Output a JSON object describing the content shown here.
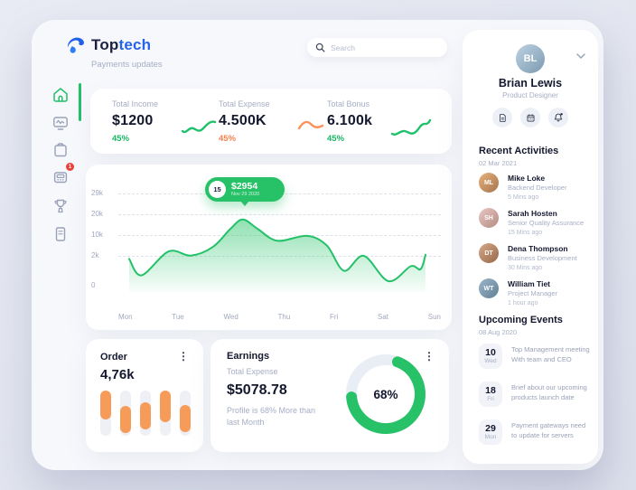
{
  "brand": {
    "name_bold": "Top",
    "name_accent": "tech",
    "subtitle": "Payments updates"
  },
  "search": {
    "placeholder": "Search"
  },
  "sidebar": {
    "items": [
      {
        "icon": "home",
        "active": true
      },
      {
        "icon": "monitor",
        "active": false
      },
      {
        "icon": "clipboard",
        "active": false
      },
      {
        "icon": "card-machine",
        "active": false,
        "badge": "1"
      },
      {
        "icon": "trophy",
        "active": false
      },
      {
        "icon": "notebook",
        "active": false
      }
    ]
  },
  "stats": [
    {
      "label": "Total Income",
      "value": "$1200",
      "change": "45%",
      "trend": "up",
      "color": "#22c06a"
    },
    {
      "label": "Total Expense",
      "value": "4.500K",
      "change": "45%",
      "trend": "hump",
      "color": "#f9804e"
    },
    {
      "label": "Total Bonus",
      "value": "6.100k",
      "change": "45%",
      "trend": "up",
      "color": "#22c06a"
    }
  ],
  "chart_data": [
    {
      "type": "area",
      "title": "",
      "x_ticks": [
        "Mon",
        "Tue",
        "Wed",
        "Thu",
        "Fri",
        "Sat",
        "Sun"
      ],
      "y_ticks": [
        "29k",
        "20k",
        "10k",
        "2k",
        "0"
      ],
      "y_range_k": [
        0,
        29
      ],
      "grid": "dashed-horizontal",
      "line_color": "#24c168",
      "fill": "green-gradient-to-transparent",
      "points": [
        [
          0,
          1.8
        ],
        [
          0.25,
          0.7
        ],
        [
          0.8,
          3.7
        ],
        [
          1.25,
          2.1
        ],
        [
          1.7,
          5.5
        ],
        [
          2.05,
          13
        ],
        [
          2.3,
          17.5
        ],
        [
          2.6,
          13
        ],
        [
          3.0,
          7.8
        ],
        [
          3.6,
          9.7
        ],
        [
          4.0,
          6.0
        ],
        [
          4.35,
          1.0
        ],
        [
          4.75,
          2.0
        ],
        [
          5.25,
          0.3
        ],
        [
          5.7,
          1.3
        ],
        [
          5.9,
          1.1
        ],
        [
          6.0,
          2.4
        ]
      ],
      "tooltip": {
        "day": "15",
        "value": "$2954",
        "date": "Nov 29 2020"
      }
    },
    {
      "type": "bar",
      "title": "Order",
      "value_label": "4,76k",
      "bar_color": "#f79b58",
      "track_color": "#eef0f5",
      "bars": [
        {
          "start_frac": 0.0,
          "height_frac": 0.64
        },
        {
          "start_frac": 0.34,
          "height_frac": 0.6
        },
        {
          "start_frac": 0.26,
          "height_frac": 0.6
        },
        {
          "start_frac": 0.0,
          "height_frac": 0.7
        },
        {
          "start_frac": 0.32,
          "height_frac": 0.6
        }
      ]
    },
    {
      "type": "donut",
      "title": "Earnings",
      "percent": 68,
      "color": "#27c167",
      "track_color": "#e9edf5"
    }
  ],
  "order": {
    "title": "Order",
    "value": "4,76k"
  },
  "earnings": {
    "title": "Earnings",
    "subtitle": "Total Expense",
    "value": "$5078.78",
    "note_line1": "Profile is 68% More than",
    "note_line2": "last Month",
    "percent_label": "68%"
  },
  "profile": {
    "name": "Brian Lewis",
    "role": "Product Designer",
    "initials": "BL",
    "actions": [
      "file",
      "calendar",
      "bell"
    ]
  },
  "recent": {
    "title": "Recent Activities",
    "date": "02 Mar 2021",
    "items": [
      {
        "name": "Mike Loke",
        "role": "Backend Developer",
        "time": "5 Mins ago",
        "initials": "ML"
      },
      {
        "name": "Sarah Hosten",
        "role": "Senior Quality Assurance",
        "time": "15 Mins ago",
        "initials": "SH"
      },
      {
        "name": "Dena Thompson",
        "role": "Business Development",
        "time": "30 Mins ago",
        "initials": "DT"
      },
      {
        "name": "William Tiet",
        "role": "Project Manager",
        "time": "1 hour ago",
        "initials": "WT"
      }
    ]
  },
  "events": {
    "title": "Upcoming Events",
    "date": "08 Aug 2020",
    "items": [
      {
        "day": "10",
        "weekday": "Wed",
        "line1": "Top Management meeting",
        "line2": "With team and CEO"
      },
      {
        "day": "18",
        "weekday": "Fri",
        "line1": "Brief about our upcoming",
        "line2": "products launch date"
      },
      {
        "day": "29",
        "weekday": "Mon",
        "line1": "Payment gateways need",
        "line2": "to update for servers"
      }
    ]
  },
  "colors": {
    "accent_green": "#22c06a",
    "accent_orange": "#f79b58",
    "navy": "#14182e",
    "muted": "#a6aec5",
    "badge_red": "#e8403a",
    "link_blue": "#2563eb"
  }
}
